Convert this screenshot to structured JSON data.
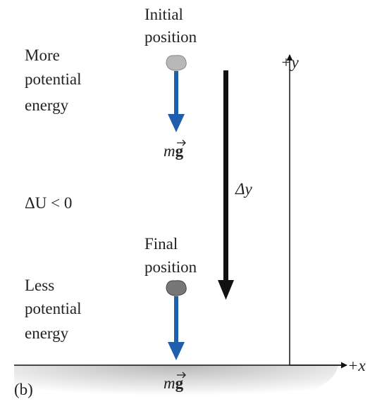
{
  "initial_label": [
    "Initial",
    "position"
  ],
  "final_label": [
    "Final",
    "position"
  ],
  "upper_energy": [
    "More",
    "potential",
    "energy"
  ],
  "lower_energy": [
    "Less",
    "potential",
    "energy"
  ],
  "force_top": {
    "m": "m",
    "g": "g"
  },
  "force_bottom": {
    "m": "m",
    "g": "g"
  },
  "delta_u": "ΔU < 0",
  "delta_y": "Δy",
  "axis_y": "+y",
  "axis_x": "+x",
  "panel": "(b)"
}
